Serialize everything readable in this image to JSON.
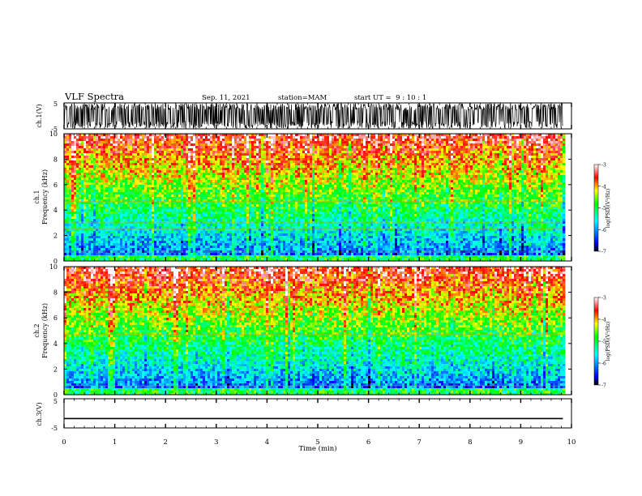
{
  "header": {
    "title": "VLF Spectra",
    "date": "Sep. 11, 2021",
    "station": "station=MAM",
    "start_ut": "start UT =  9 : 10 : 1"
  },
  "chart_data": [
    {
      "type": "line",
      "name": "ch1-waveform",
      "ylabel": "ch.1(V)",
      "ylim": [
        -5,
        5
      ],
      "yticks": [
        "5",
        "-5"
      ],
      "description_values": {
        "x_range_min": [
          0,
          9.83
        ],
        "amplitude_range_v": [
          -5,
          5
        ]
      }
    },
    {
      "type": "heatmap",
      "name": "ch1-spectrogram",
      "ylabel": [
        "ch.1",
        "Frequency (kHz)"
      ],
      "ylim": [
        0,
        10
      ],
      "yticks": [
        "0",
        "2",
        "4",
        "6",
        "8",
        "10"
      ],
      "colorbar": {
        "label": "log(PSD)(V²/Hz)",
        "ticks": [
          "-3",
          "-4",
          "-5",
          "-6",
          "-7"
        ],
        "range": [
          -7,
          -3
        ]
      }
    },
    {
      "type": "heatmap",
      "name": "ch2-spectrogram",
      "ylabel": [
        "ch.2",
        "Frequency (kHz)"
      ],
      "ylim": [
        0,
        10
      ],
      "yticks": [
        "0",
        "2",
        "4",
        "6",
        "8",
        "10"
      ],
      "colorbar": {
        "label": "log(PSD)(V²/Hz)",
        "ticks": [
          "-3",
          "-4",
          "-5",
          "-6",
          "-7"
        ],
        "range": [
          -7,
          -3
        ]
      }
    },
    {
      "type": "line",
      "name": "ch3-waveform",
      "ylabel": "ch.3(V)",
      "ylim": [
        -5,
        5
      ],
      "yticks": [
        "5",
        "-5"
      ],
      "series": [
        {
          "x": [
            0,
            9.83
          ],
          "y": [
            -1.8,
            -1.8
          ]
        }
      ]
    }
  ],
  "xaxis": {
    "label": "Time (min)",
    "range": [
      0,
      10
    ],
    "ticks": [
      "0",
      "1",
      "2",
      "3",
      "4",
      "5",
      "6",
      "7",
      "8",
      "9",
      "10"
    ]
  },
  "colors": {
    "colormap": [
      "#000000",
      "#0000ff",
      "#00ffff",
      "#00ff00",
      "#ffff00",
      "#ff0000",
      "#ffffff"
    ]
  }
}
